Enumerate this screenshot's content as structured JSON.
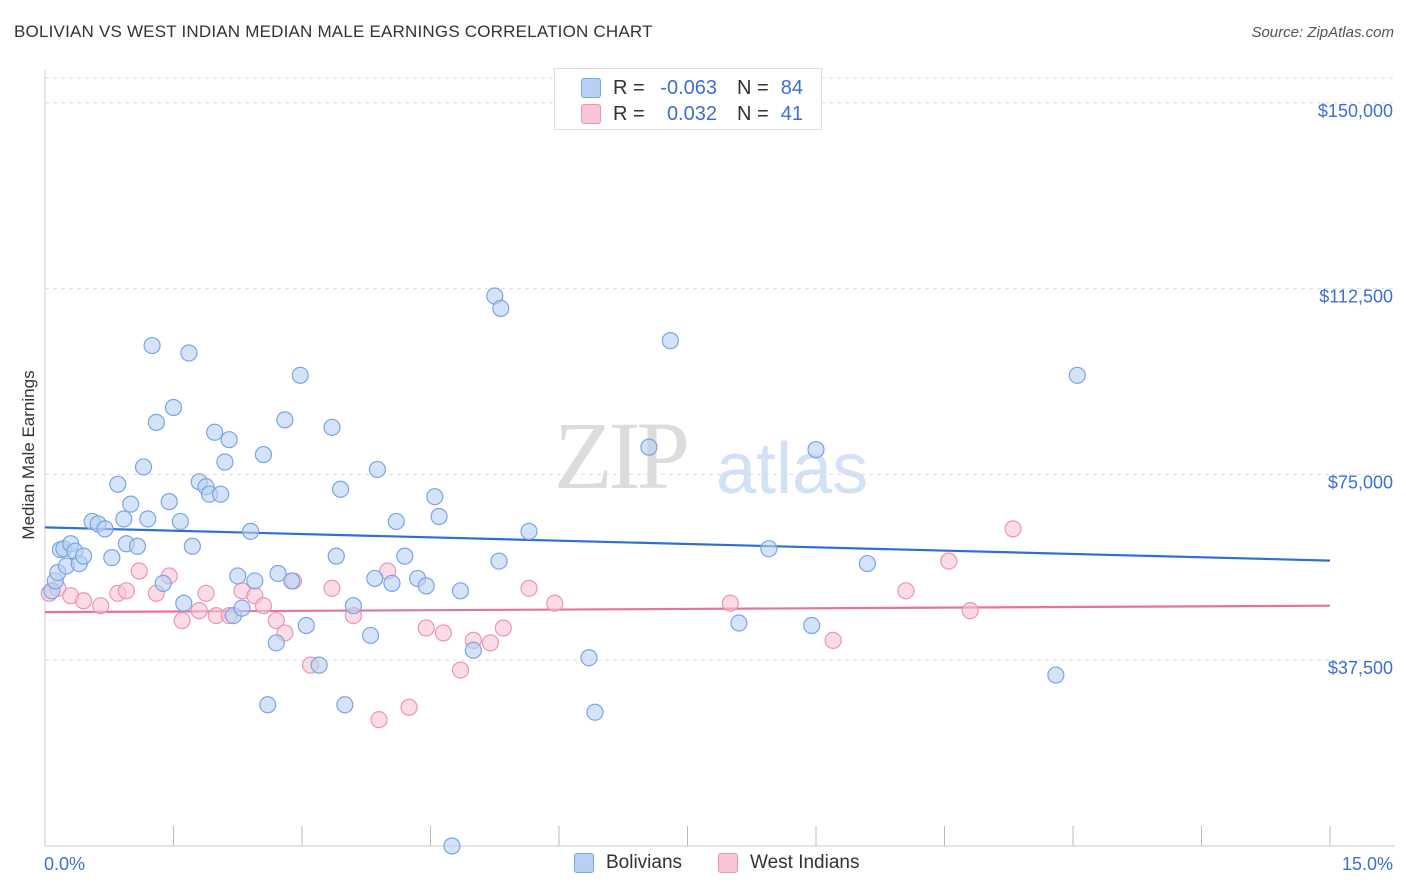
{
  "header": {
    "title": "BOLIVIAN VS WEST INDIAN MEDIAN MALE EARNINGS CORRELATION CHART",
    "source": "Source: ZipAtlas.com"
  },
  "watermark": {
    "zip": "ZIP",
    "atlas": "atlas"
  },
  "legend": {
    "rows": [
      {
        "r_label": "R =",
        "r_value": "-0.063",
        "n_label": "N =",
        "n_value": "84"
      },
      {
        "r_label": "R =",
        "r_value": "0.032",
        "n_label": "N =",
        "n_value": "41"
      }
    ]
  },
  "bottom_legend": {
    "series1": "Bolivians",
    "series2": "West Indians"
  },
  "colors": {
    "blue_fill": "#b8d0f3",
    "blue_stroke": "#7aa5e3",
    "blue_line": "#2f6fd3",
    "pink_fill": "#f8c5d6",
    "pink_stroke": "#ec95b3",
    "pink_line": "#e5739a",
    "tick_text": "#3d6fd0",
    "grid": "#dddddd"
  },
  "chart_data": {
    "type": "scatter",
    "title": "BOLIVIAN VS WEST INDIAN MEDIAN MALE EARNINGS CORRELATION CHART",
    "xlabel": "",
    "ylabel": "Median Male Earnings",
    "xlim": [
      0,
      15
    ],
    "ylim": [
      0,
      155000
    ],
    "x_tick_labels": [
      "0.0%",
      "15.0%"
    ],
    "y_ticks": [
      37500,
      75000,
      112500,
      150000
    ],
    "y_tick_labels": [
      "$37,500",
      "$75,000",
      "$112,500",
      "$150,000"
    ],
    "series": [
      {
        "name": "Bolivians",
        "r": -0.063,
        "n": 84,
        "trend": [
          [
            0,
            64300
          ],
          [
            15,
            57600
          ]
        ],
        "points": [
          [
            0.08,
            51500
          ],
          [
            0.12,
            53500
          ],
          [
            0.15,
            55200
          ],
          [
            0.18,
            59800
          ],
          [
            0.22,
            60000
          ],
          [
            0.25,
            56500
          ],
          [
            0.3,
            61000
          ],
          [
            0.35,
            59500
          ],
          [
            0.4,
            57000
          ],
          [
            0.45,
            58500
          ],
          [
            0.55,
            65500
          ],
          [
            0.62,
            65000
          ],
          [
            0.7,
            64000
          ],
          [
            0.78,
            58200
          ],
          [
            0.85,
            73000
          ],
          [
            0.92,
            66000
          ],
          [
            0.95,
            61000
          ],
          [
            1.0,
            69000
          ],
          [
            1.08,
            60500
          ],
          [
            1.15,
            76500
          ],
          [
            1.2,
            66000
          ],
          [
            1.25,
            101000
          ],
          [
            1.3,
            85500
          ],
          [
            1.38,
            53000
          ],
          [
            1.45,
            69500
          ],
          [
            1.5,
            88500
          ],
          [
            1.58,
            65500
          ],
          [
            1.62,
            49000
          ],
          [
            1.68,
            99500
          ],
          [
            1.72,
            60500
          ],
          [
            1.8,
            73500
          ],
          [
            1.88,
            72500
          ],
          [
            1.92,
            71000
          ],
          [
            1.98,
            83500
          ],
          [
            2.05,
            71000
          ],
          [
            2.1,
            77500
          ],
          [
            2.15,
            82000
          ],
          [
            2.2,
            46500
          ],
          [
            2.25,
            54500
          ],
          [
            2.3,
            48000
          ],
          [
            2.4,
            63500
          ],
          [
            2.45,
            53500
          ],
          [
            2.55,
            79000
          ],
          [
            2.6,
            28500
          ],
          [
            2.7,
            41000
          ],
          [
            2.72,
            55000
          ],
          [
            2.8,
            86000
          ],
          [
            2.88,
            53500
          ],
          [
            2.98,
            95000
          ],
          [
            3.05,
            44500
          ],
          [
            3.2,
            36500
          ],
          [
            3.35,
            84500
          ],
          [
            3.4,
            58500
          ],
          [
            3.45,
            72000
          ],
          [
            3.5,
            28500
          ],
          [
            3.6,
            48500
          ],
          [
            3.8,
            42500
          ],
          [
            3.85,
            54000
          ],
          [
            3.88,
            76000
          ],
          [
            4.05,
            53000
          ],
          [
            4.1,
            65500
          ],
          [
            4.2,
            58500
          ],
          [
            4.35,
            54000
          ],
          [
            4.45,
            52500
          ],
          [
            4.55,
            70500
          ],
          [
            4.6,
            66500
          ],
          [
            4.75,
            0
          ],
          [
            4.85,
            51500
          ],
          [
            5.0,
            39500
          ],
          [
            5.25,
            111000
          ],
          [
            5.32,
            108500
          ],
          [
            5.3,
            57500
          ],
          [
            5.65,
            63500
          ],
          [
            6.35,
            38000
          ],
          [
            6.42,
            27000
          ],
          [
            7.05,
            80500
          ],
          [
            7.3,
            102000
          ],
          [
            8.1,
            45000
          ],
          [
            8.45,
            60000
          ],
          [
            8.95,
            44500
          ],
          [
            9.0,
            80000
          ],
          [
            9.6,
            57000
          ],
          [
            11.8,
            34500
          ],
          [
            12.05,
            95000
          ]
        ]
      },
      {
        "name": "West Indians",
        "r": 0.032,
        "n": 41,
        "trend": [
          [
            0,
            47200
          ],
          [
            15,
            48500
          ]
        ],
        "points": [
          [
            0.05,
            51000
          ],
          [
            0.15,
            52000
          ],
          [
            0.3,
            50500
          ],
          [
            0.45,
            49500
          ],
          [
            0.65,
            48500
          ],
          [
            0.85,
            51000
          ],
          [
            0.95,
            51500
          ],
          [
            1.1,
            55500
          ],
          [
            1.3,
            51000
          ],
          [
            1.45,
            54500
          ],
          [
            1.6,
            45500
          ],
          [
            1.8,
            47500
          ],
          [
            1.88,
            51000
          ],
          [
            2.0,
            46500
          ],
          [
            2.15,
            46500
          ],
          [
            2.3,
            51500
          ],
          [
            2.45,
            50500
          ],
          [
            2.55,
            48500
          ],
          [
            2.7,
            45500
          ],
          [
            2.8,
            43000
          ],
          [
            2.9,
            53500
          ],
          [
            3.1,
            36500
          ],
          [
            3.35,
            52000
          ],
          [
            3.6,
            46500
          ],
          [
            3.9,
            25500
          ],
          [
            4.0,
            55500
          ],
          [
            4.25,
            28000
          ],
          [
            4.45,
            44000
          ],
          [
            4.65,
            43000
          ],
          [
            4.85,
            35500
          ],
          [
            5.0,
            41500
          ],
          [
            5.2,
            41000
          ],
          [
            5.35,
            44000
          ],
          [
            5.65,
            52000
          ],
          [
            5.95,
            49000
          ],
          [
            8.0,
            49000
          ],
          [
            9.2,
            41500
          ],
          [
            10.05,
            51500
          ],
          [
            10.55,
            57500
          ],
          [
            10.8,
            47500
          ],
          [
            11.3,
            64000
          ]
        ]
      }
    ]
  }
}
